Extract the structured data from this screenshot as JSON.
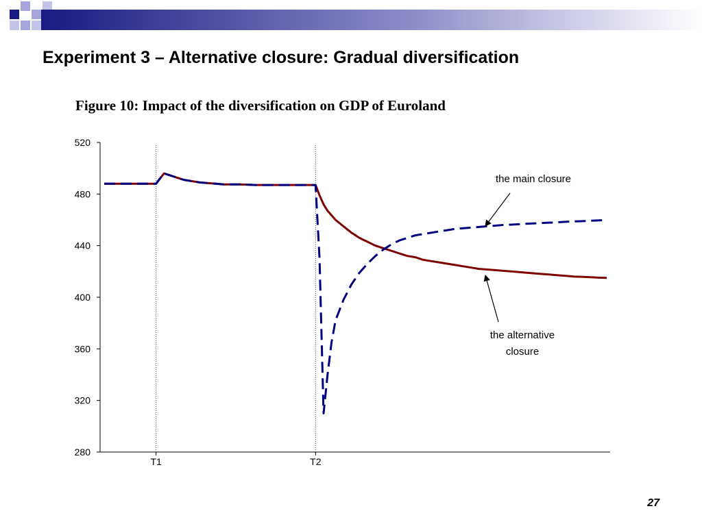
{
  "slide": {
    "title": "Experiment 3 – Alternative closure: Gradual diversification",
    "page_number": "27"
  },
  "colors": {
    "alternative": "#7f0000",
    "main": "#000080",
    "banner_dark": "#1a1a80",
    "deco_square": "#a5a5dc"
  },
  "chart_data": {
    "type": "line",
    "title": "Figure 10: Impact of the diversification on GDP of Euroland",
    "ylim": [
      280,
      520
    ],
    "yticks": [
      "520",
      "480",
      "440",
      "400",
      "360",
      "320",
      "280"
    ],
    "x_markers": [
      {
        "label": "T1",
        "t": 13
      },
      {
        "label": "T2",
        "t": 53
      }
    ],
    "x_range": [
      0,
      126
    ],
    "series": [
      {
        "name": "the alternative closure",
        "style": "solid",
        "x": [
          0,
          13,
          14,
          15,
          16,
          18,
          20,
          24,
          28,
          30,
          34,
          38,
          40,
          44,
          48,
          50,
          53,
          54,
          55,
          56,
          58,
          60,
          62,
          64,
          66,
          68,
          70,
          72,
          74,
          76,
          78,
          80,
          82,
          84,
          86,
          88,
          90,
          92,
          94,
          96,
          98,
          100,
          102,
          104,
          106,
          108,
          110,
          112,
          114,
          116,
          118,
          120,
          122,
          124,
          126
        ],
        "values": [
          488,
          488,
          492,
          496,
          495,
          493,
          491,
          489,
          488,
          487.5,
          487.5,
          487,
          487,
          487,
          487,
          487,
          487,
          479,
          472,
          467,
          460,
          455,
          450,
          446,
          443,
          440,
          438,
          436,
          434,
          432,
          431,
          429,
          428,
          427,
          426,
          425,
          424,
          423,
          422,
          421.5,
          421,
          420.5,
          420,
          419.5,
          419,
          418.5,
          418,
          417.5,
          417,
          416.5,
          416,
          415.8,
          415.5,
          415.2,
          415
        ]
      },
      {
        "name": "the main closure",
        "style": "dashed",
        "x": [
          0,
          13,
          14,
          15,
          16,
          18,
          20,
          24,
          28,
          30,
          34,
          38,
          40,
          44,
          48,
          50,
          53,
          54,
          55,
          56,
          57,
          58,
          60,
          62,
          64,
          66,
          68,
          70,
          72,
          74,
          76,
          78,
          80,
          82,
          84,
          86,
          88,
          90,
          92,
          94,
          96,
          98,
          100,
          102,
          104,
          106,
          108,
          110,
          112,
          114,
          116,
          118,
          120,
          122,
          124,
          126
        ],
        "values": [
          488,
          488,
          492,
          496,
          495,
          493,
          491,
          489,
          488,
          487.5,
          487.5,
          487,
          487,
          487,
          487,
          487,
          487,
          430,
          310,
          340,
          365,
          382,
          398,
          410,
          419,
          426,
          432,
          437,
          441,
          444,
          446,
          448,
          449,
          450,
          451,
          452,
          453,
          453.5,
          454,
          454.5,
          455,
          455.5,
          456,
          456.3,
          456.6,
          457,
          457.3,
          457.6,
          457.9,
          458.2,
          458.5,
          458.8,
          459,
          459.3,
          459.6,
          460
        ]
      }
    ],
    "annotations": {
      "main_label": "the main closure",
      "alt_label_line1": "the alternative",
      "alt_label_line2": "closure"
    },
    "grid": false,
    "legend": "none"
  }
}
